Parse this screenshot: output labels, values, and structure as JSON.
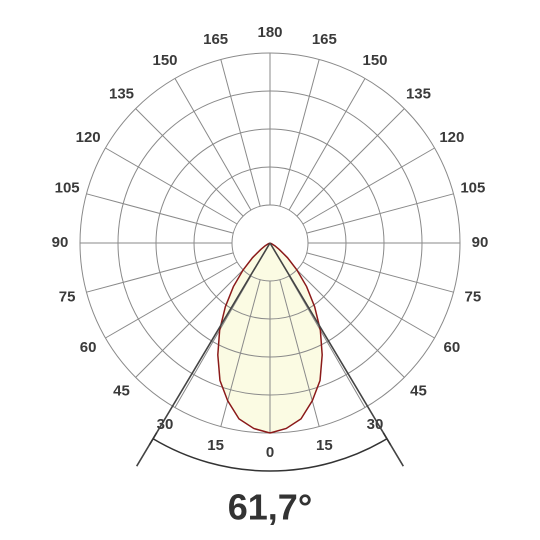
{
  "chart_data": {
    "type": "polar",
    "angle_ticks": [
      0,
      15,
      30,
      45,
      60,
      75,
      90,
      105,
      120,
      135,
      150,
      165,
      180
    ],
    "rlim": [
      0,
      1
    ],
    "rticks": [
      0.2,
      0.4,
      0.6,
      0.8,
      1.0
    ],
    "series": [
      {
        "angles": [
          0,
          5,
          10,
          15,
          20,
          25,
          30,
          35,
          40,
          45,
          50,
          55,
          60,
          65,
          70,
          75,
          80,
          85,
          90
        ],
        "values": [
          1.0,
          0.98,
          0.94,
          0.86,
          0.77,
          0.65,
          0.53,
          0.41,
          0.3,
          0.2,
          0.12,
          0.06,
          0.03,
          0.01,
          0,
          0,
          0,
          0,
          0
        ],
        "color": "#8b1a1a",
        "fill": "#fbfbe3"
      }
    ],
    "beam_angle": {
      "value": 61.7,
      "label": "61,7°"
    }
  }
}
